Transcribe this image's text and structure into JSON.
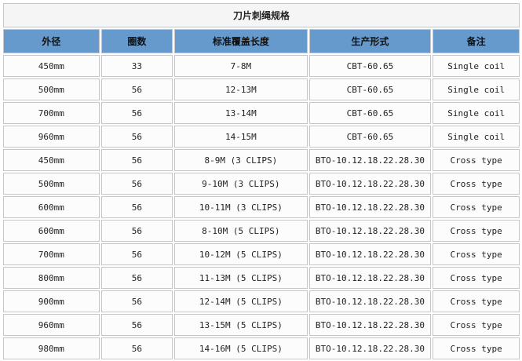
{
  "title": "刀片刺绳规格",
  "headers": [
    "外径",
    "圈数",
    "标准覆盖长度",
    "生产形式",
    "备注"
  ],
  "rows": [
    [
      "450mm",
      "33",
      "7-8M",
      "CBT-60.65",
      "Single coil"
    ],
    [
      "500mm",
      "56",
      "12-13M",
      "CBT-60.65",
      "Single coil"
    ],
    [
      "700mm",
      "56",
      "13-14M",
      "CBT-60.65",
      "Single coil"
    ],
    [
      "960mm",
      "56",
      "14-15M",
      "CBT-60.65",
      "Single coil"
    ],
    [
      "450mm",
      "56",
      "8-9M (3 CLIPS)",
      "BTO-10.12.18.22.28.30",
      "Cross type"
    ],
    [
      "500mm",
      "56",
      "9-10M (3 CLIPS)",
      "BTO-10.12.18.22.28.30",
      "Cross type"
    ],
    [
      "600mm",
      "56",
      "10-11M (3 CLIPS)",
      "BTO-10.12.18.22.28.30",
      "Cross type"
    ],
    [
      "600mm",
      "56",
      "8-10M (5 CLIPS)",
      "BTO-10.12.18.22.28.30",
      "Cross type"
    ],
    [
      "700mm",
      "56",
      "10-12M (5 CLIPS)",
      "BTO-10.12.18.22.28.30",
      "Cross type"
    ],
    [
      "800mm",
      "56",
      "11-13M (5 CLIPS)",
      "BTO-10.12.18.22.28.30",
      "Cross type"
    ],
    [
      "900mm",
      "56",
      "12-14M (5 CLIPS)",
      "BTO-10.12.18.22.28.30",
      "Cross type"
    ],
    [
      "960mm",
      "56",
      "13-15M (5 CLIPS)",
      "BTO-10.12.18.22.28.30",
      "Cross type"
    ],
    [
      "980mm",
      "56",
      "14-16M (5 CLIPS)",
      "BTO-10.12.18.22.28.30",
      "Cross type"
    ]
  ],
  "colors": {
    "header_bg": "#6699cc",
    "title_bg": "#f5f5f5",
    "border": "#c6c6c6"
  }
}
